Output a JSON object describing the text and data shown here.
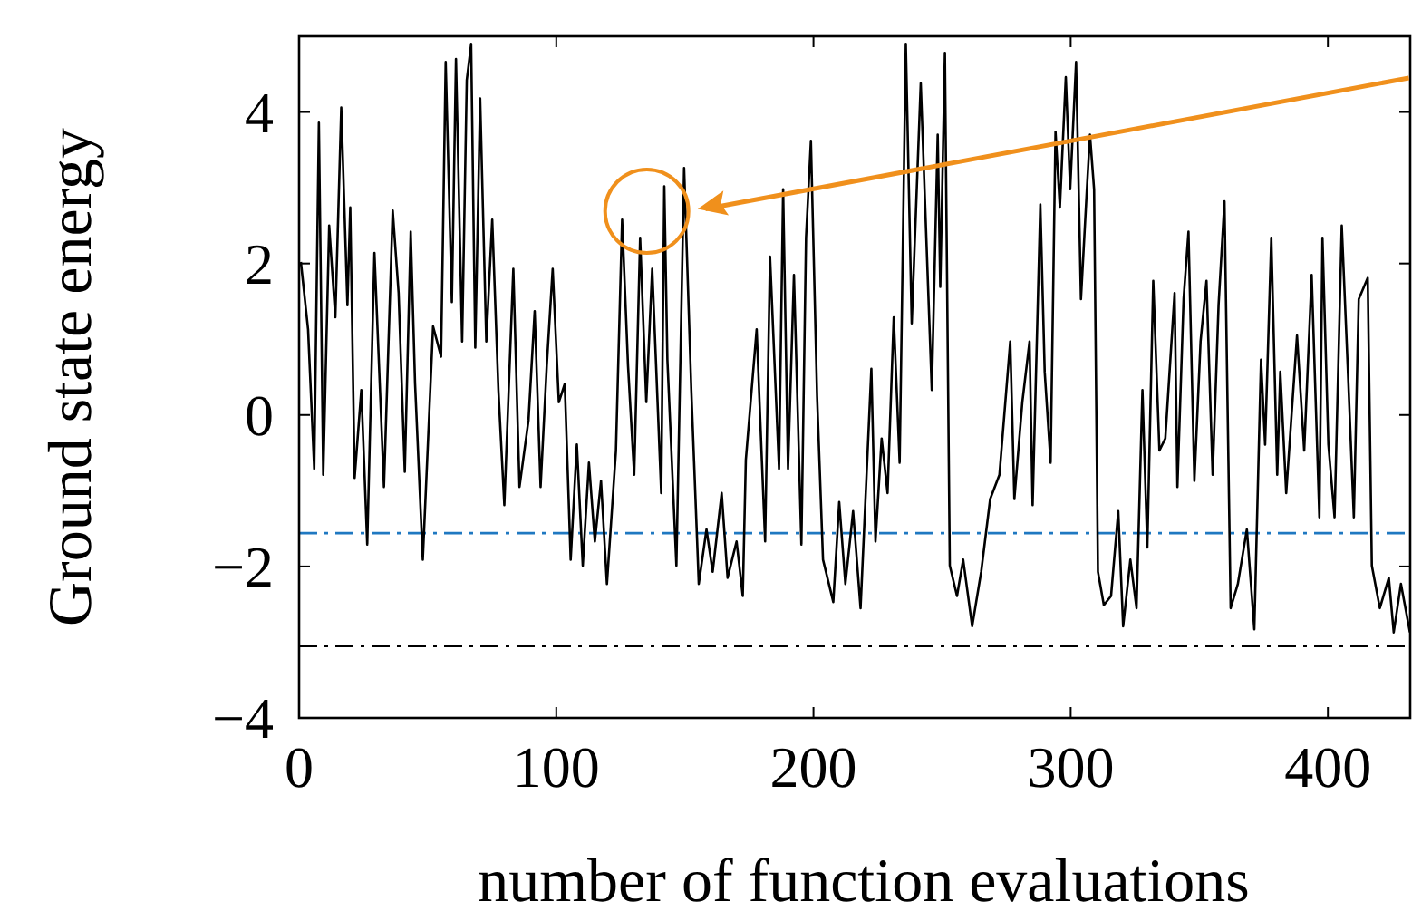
{
  "chart_data": {
    "type": "line",
    "xlabel": "number of function evaluations",
    "ylabel": "Ground state energy",
    "xlim": [
      0,
      432
    ],
    "ylim": [
      -4,
      5
    ],
    "xticks": [
      0,
      100,
      200,
      300,
      400
    ],
    "yticks": [
      -4,
      -2,
      0,
      2,
      4
    ],
    "grid": false,
    "marker": "none",
    "ref_lines": [
      {
        "axis": "y",
        "value": -1.56,
        "color": "#1f78c1",
        "line_style": "dashed"
      },
      {
        "axis": "y",
        "value": -3.05,
        "color": "#000000",
        "line_style": "dashed"
      }
    ],
    "series": [
      {
        "color": "#000000",
        "x": [
          0.7,
          3.5,
          5.9,
          7.7,
          9.4,
          11.7,
          14.1,
          16.4,
          18.8,
          19.9,
          21.6,
          24.2,
          26.5,
          29.3,
          33.0,
          36.4,
          38.7,
          41.1,
          43.4,
          45.1,
          48.1,
          52.1,
          55.2,
          57.0,
          59.4,
          61.0,
          63.4,
          65.2,
          66.9,
          68.5,
          70.4,
          72.8,
          75.1,
          77.5,
          79.8,
          83.3,
          85.7,
          89.2,
          91.6,
          93.9,
          96.3,
          98.6,
          101.0,
          103.3,
          105.6,
          108.0,
          110.3,
          112.7,
          115.0,
          117.4,
          119.7,
          123.2,
          125.6,
          127.9,
          130.3,
          132.6,
          135.0,
          137.3,
          140.8,
          142.0,
          143.2,
          146.7,
          149.7,
          152.5,
          155.4,
          158.4,
          160.8,
          164.3,
          166.6,
          170.1,
          172.5,
          173.7,
          177.9,
          181.2,
          183.1,
          186.6,
          188.2,
          190.1,
          192.4,
          195.3,
          197.1,
          199.0,
          201.4,
          203.7,
          207.7,
          210.0,
          212.4,
          215.4,
          218.3,
          222.5,
          224.1,
          226.5,
          228.8,
          231.2,
          233.5,
          235.9,
          238.2,
          241.7,
          246.0,
          248.3,
          249.3,
          251.1,
          253.0,
          255.8,
          258.2,
          261.7,
          265.2,
          268.7,
          272.3,
          276.5,
          278.1,
          281.2,
          284.0,
          285.2,
          288.2,
          289.9,
          292.2,
          294.1,
          295.8,
          298.1,
          299.8,
          302.1,
          304.0,
          306.3,
          307.5,
          309.1,
          310.6,
          312.9,
          315.7,
          318.5,
          320.4,
          323.2,
          325.6,
          327.9,
          329.8,
          332.1,
          334.5,
          336.8,
          340.4,
          341.5,
          343.9,
          345.8,
          348.1,
          350.5,
          352.8,
          355.2,
          357.5,
          359.8,
          362.2,
          365.0,
          368.5,
          371.4,
          374.0,
          375.6,
          378.0,
          380.3,
          381.5,
          383.8,
          388.0,
          390.8,
          393.7,
          396.7,
          397.9,
          400.2,
          402.6,
          405.4,
          407.7,
          410.1,
          412.0,
          415.5,
          417.1,
          420.2,
          423.7,
          425.6,
          428.4,
          431.9
        ],
        "values": [
          2.02,
          1.13,
          -0.71,
          3.86,
          -0.79,
          2.5,
          1.29,
          4.06,
          1.45,
          2.74,
          -0.83,
          0.33,
          -1.71,
          2.14,
          -0.95,
          2.7,
          1.61,
          -0.75,
          2.42,
          0.41,
          -1.91,
          1.17,
          0.77,
          4.66,
          1.49,
          4.7,
          0.97,
          4.42,
          4.9,
          0.89,
          4.18,
          0.97,
          2.58,
          0.33,
          -1.19,
          1.93,
          -0.95,
          -0.07,
          1.37,
          -0.95,
          0.65,
          1.93,
          0.17,
          0.41,
          -1.91,
          -0.39,
          -1.99,
          -0.63,
          -1.67,
          -0.87,
          -2.23,
          -0.47,
          2.58,
          0.65,
          -0.79,
          2.34,
          0.17,
          1.93,
          -1.03,
          3.02,
          0.73,
          -1.99,
          3.26,
          0.33,
          -2.23,
          -1.51,
          -2.07,
          -1.03,
          -2.15,
          -1.67,
          -2.39,
          -0.59,
          1.13,
          -1.67,
          2.09,
          -0.71,
          2.98,
          -0.71,
          1.85,
          -1.71,
          2.34,
          3.62,
          0.25,
          -1.91,
          -2.47,
          -1.15,
          -2.23,
          -1.27,
          -2.55,
          0.61,
          -1.67,
          -0.31,
          -1.03,
          1.29,
          -0.63,
          4.9,
          1.21,
          4.38,
          0.33,
          3.7,
          1.69,
          4.78,
          -1.99,
          -2.39,
          -1.91,
          -2.79,
          -2.07,
          -1.11,
          -0.79,
          0.97,
          -1.11,
          0.17,
          0.97,
          -1.19,
          2.78,
          0.57,
          -0.63,
          3.74,
          2.74,
          4.46,
          2.98,
          4.66,
          1.53,
          2.98,
          3.7,
          2.98,
          -2.07,
          -2.51,
          -2.39,
          -1.27,
          -2.79,
          -1.91,
          -2.55,
          0.33,
          -1.75,
          1.77,
          -0.47,
          -0.31,
          1.61,
          -0.95,
          1.53,
          2.42,
          -0.87,
          0.97,
          1.77,
          -0.79,
          1.45,
          2.82,
          -2.55,
          -2.23,
          -1.51,
          -2.83,
          0.73,
          -0.39,
          2.34,
          -0.79,
          0.57,
          -1.03,
          1.05,
          -0.47,
          1.85,
          -1.35,
          2.34,
          -0.39,
          -1.35,
          2.5,
          0.65,
          -1.35,
          1.53,
          1.81,
          -1.99,
          -2.55,
          -2.15,
          -2.87,
          -2.23,
          -2.87
        ]
      }
    ]
  }
}
